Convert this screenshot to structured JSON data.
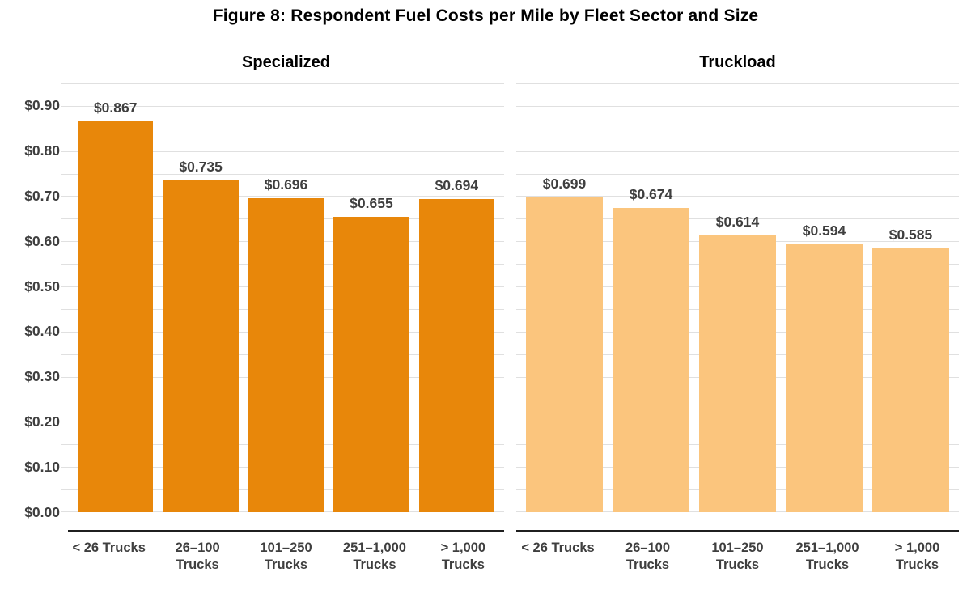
{
  "title": "Figure 8: Respondent Fuel Costs per Mile by Fleet Sector and Size",
  "chart_data": {
    "type": "bar",
    "title": "Figure 8: Respondent Fuel Costs per Mile by Fleet Sector and Size",
    "layout": "two panels side by side, shared y axis at left, grid on",
    "categories": [
      {
        "lines": [
          "< 26 Trucks"
        ]
      },
      {
        "lines": [
          "26–100",
          "Trucks"
        ]
      },
      {
        "lines": [
          "101–250",
          "Trucks"
        ]
      },
      {
        "lines": [
          "251–1,000",
          "Trucks"
        ]
      },
      {
        "lines": [
          "> 1,000",
          "Trucks"
        ]
      }
    ],
    "panels": [
      {
        "name": "Specialized",
        "bar_color": "#E8870A",
        "values": [
          0.867,
          0.735,
          0.696,
          0.655,
          0.694
        ],
        "value_labels": [
          "$0.867",
          "$0.735",
          "$0.696",
          "$0.655",
          "$0.694"
        ]
      },
      {
        "name": "Truckload",
        "bar_color": "#FBC57D",
        "values": [
          0.699,
          0.674,
          0.614,
          0.594,
          0.585
        ],
        "value_labels": [
          "$0.699",
          "$0.674",
          "$0.614",
          "$0.594",
          "$0.585"
        ]
      }
    ],
    "y_axis": {
      "min": 0,
      "max": 0.95,
      "tick_values": [
        0.9,
        0.8,
        0.7,
        0.6,
        0.5,
        0.4,
        0.3,
        0.2,
        0.1,
        0.0
      ],
      "tick_labels": [
        "$0.90",
        "$0.80",
        "$0.70",
        "$0.60",
        "$0.50",
        "$0.40",
        "$0.30",
        "$0.20",
        "$0.10",
        "$0.00"
      ],
      "gridline_step": 0.05
    },
    "colors": {
      "gridline": "#E0E0E0",
      "axis_line": "#1F1F1F",
      "label_text": "#3F3F3F",
      "title_text": "#000000"
    }
  }
}
